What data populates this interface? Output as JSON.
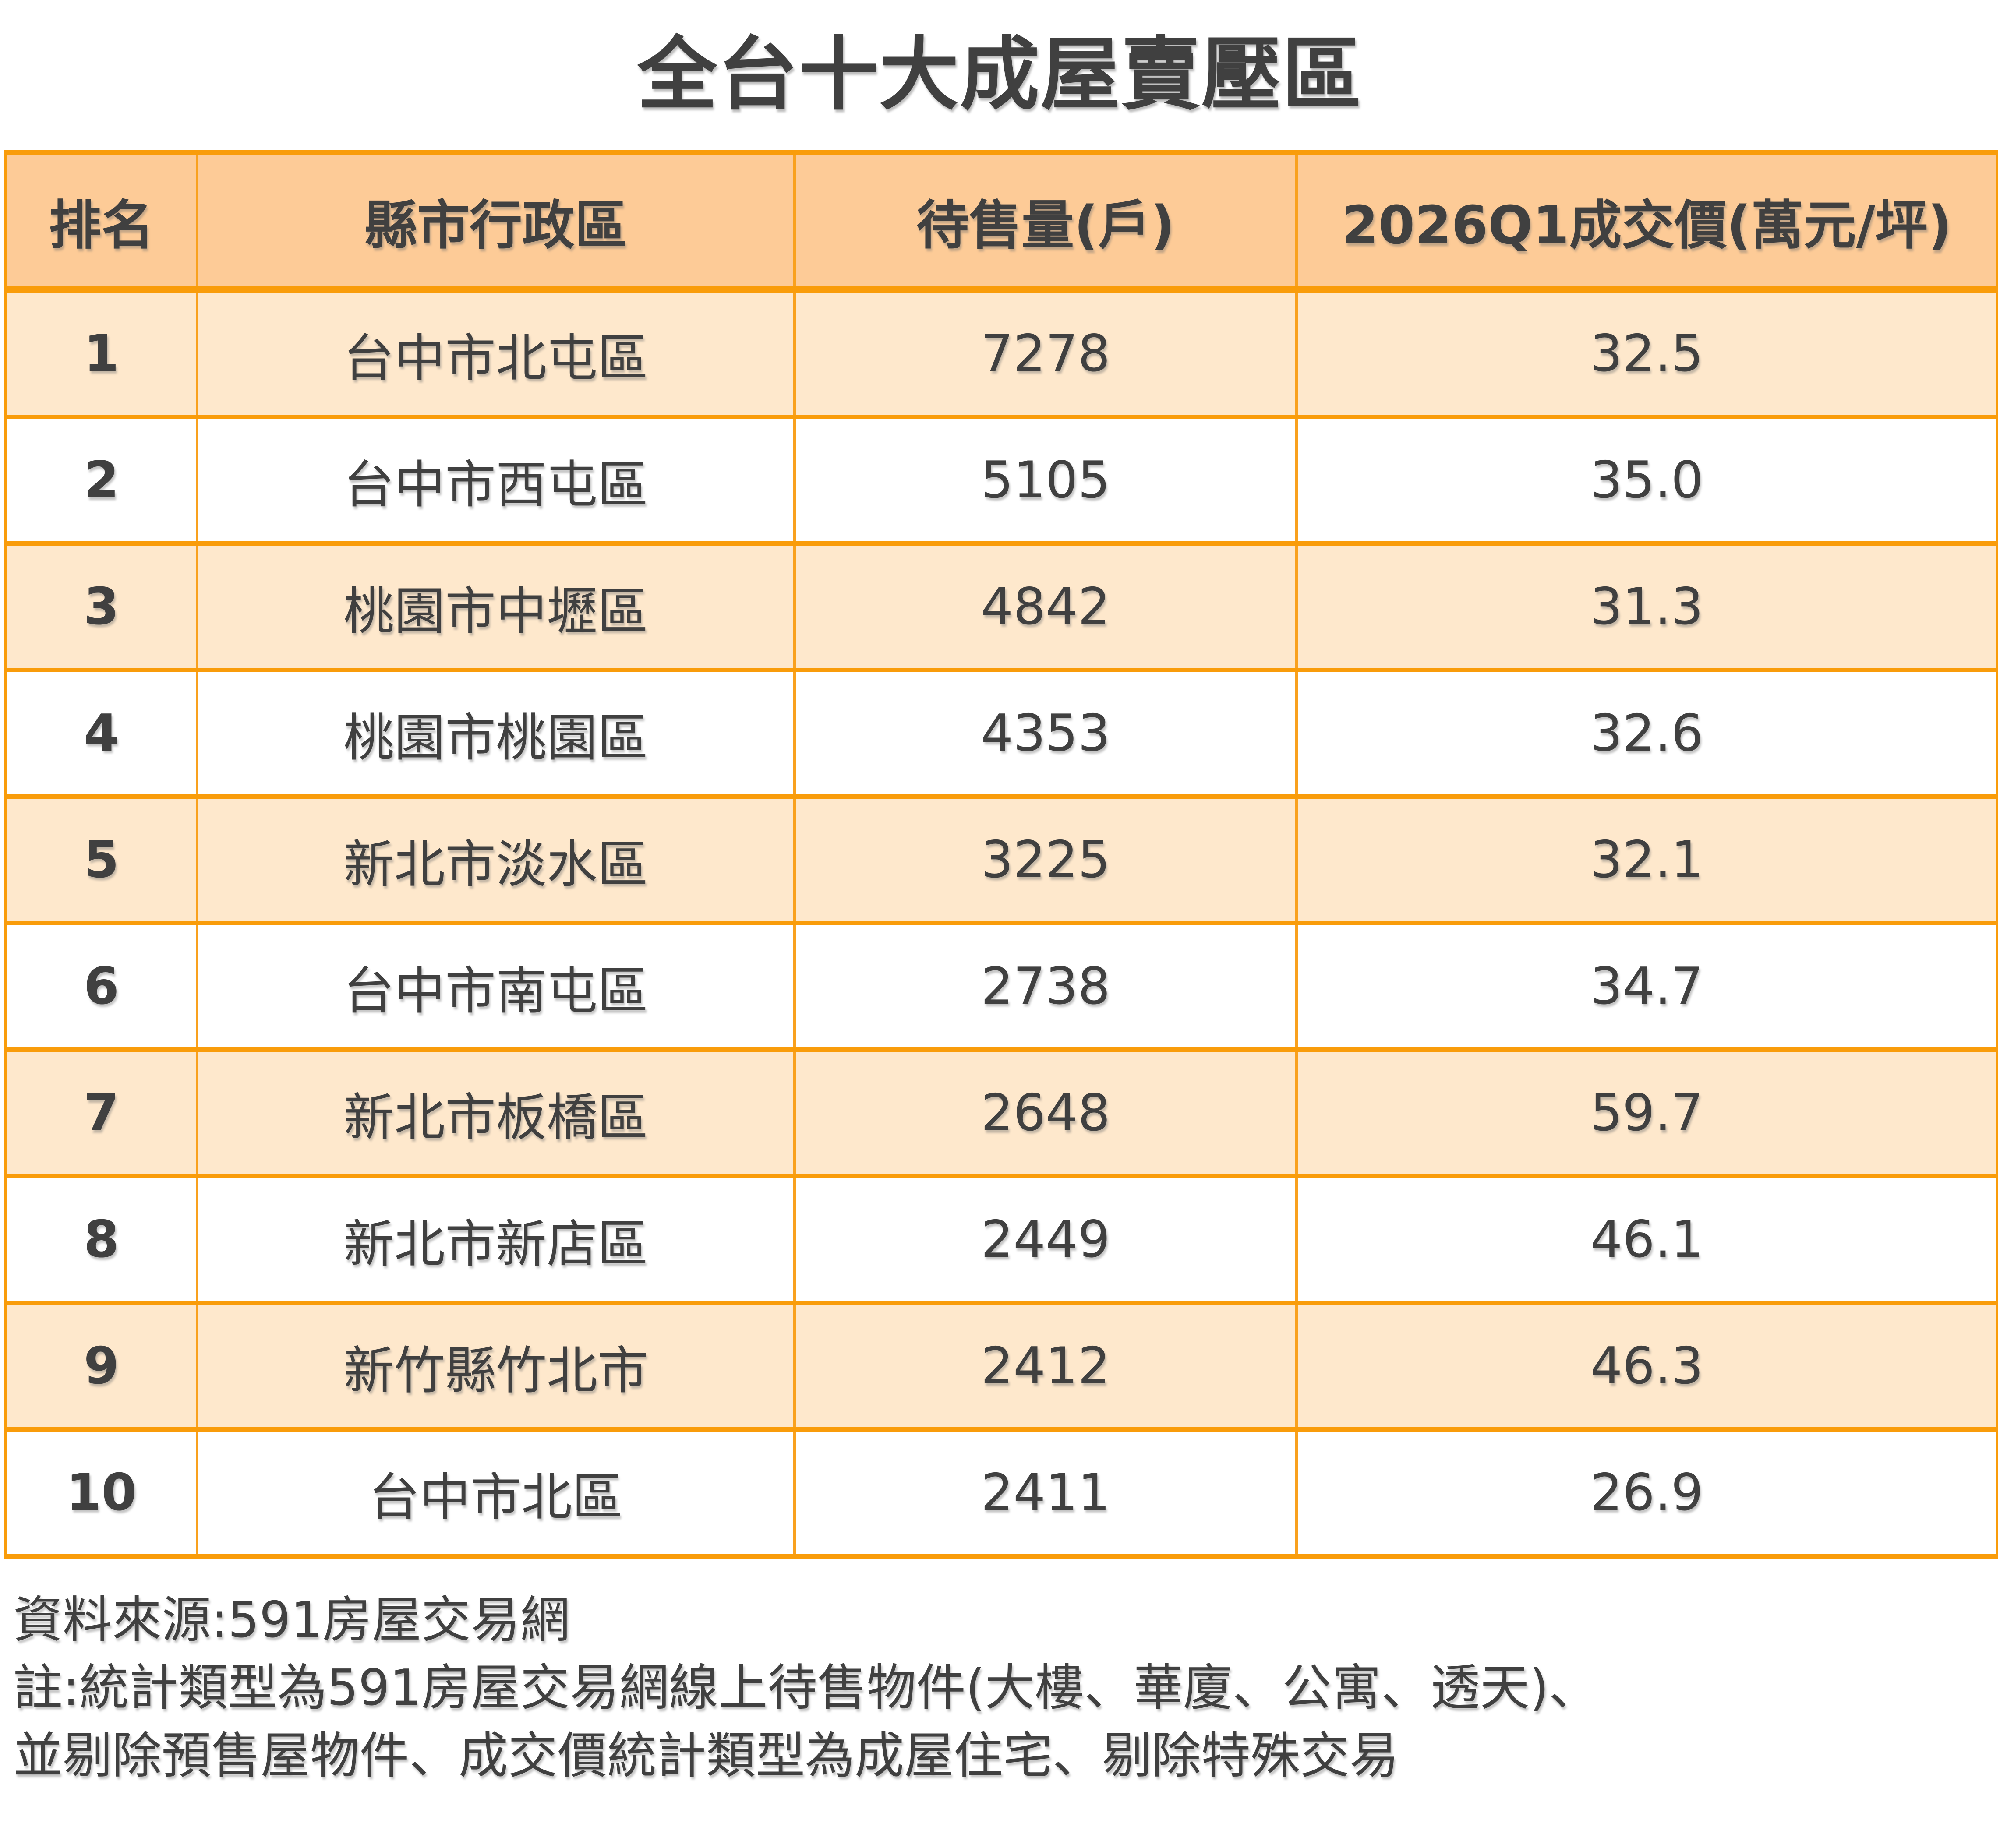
{
  "title": "全台十大成屋賣壓區",
  "table": {
    "columns": [
      "排名",
      "縣市行政區",
      "待售量(戶)",
      "2026Q1成交價(萬元/坪)"
    ],
    "rows": [
      {
        "rank": "1",
        "district": "台中市北屯區",
        "supply": "7278",
        "price": "32.5"
      },
      {
        "rank": "2",
        "district": "台中市西屯區",
        "supply": "5105",
        "price": "35.0"
      },
      {
        "rank": "3",
        "district": "桃園市中壢區",
        "supply": "4842",
        "price": "31.3"
      },
      {
        "rank": "4",
        "district": "桃園市桃園區",
        "supply": "4353",
        "price": "32.6"
      },
      {
        "rank": "5",
        "district": "新北市淡水區",
        "supply": "3225",
        "price": "32.1"
      },
      {
        "rank": "6",
        "district": "台中市南屯區",
        "supply": "2738",
        "price": "34.7"
      },
      {
        "rank": "7",
        "district": "新北市板橋區",
        "supply": "2648",
        "price": "59.7"
      },
      {
        "rank": "8",
        "district": "新北市新店區",
        "supply": "2449",
        "price": "46.1"
      },
      {
        "rank": "9",
        "district": "新竹縣竹北市",
        "supply": "2412",
        "price": "46.3"
      },
      {
        "rank": "10",
        "district": "台中市北區",
        "supply": "2411",
        "price": "26.9"
      }
    ]
  },
  "footer": {
    "source": "資料來源:591房屋交易網",
    "note_line1": "註:統計類型為591房屋交易網線上待售物件(大樓、華廈、公寓、透天)、",
    "note_line2": "並剔除預售屋物件、成交價統計類型為成屋住宅、剔除特殊交易"
  },
  "colors": {
    "border_thick": "#F99C0A",
    "border_thin": "#F9A11E",
    "header_bg": "#FDCB97",
    "row_odd_bg": "#FEE8CC",
    "row_even_bg": "#FFFFFF",
    "text": "#404040"
  },
  "chart_data": {
    "type": "table",
    "title": "全台十大成屋賣壓區",
    "columns": [
      "排名",
      "縣市行政區",
      "待售量(戶)",
      "2026Q1成交價(萬元/坪)"
    ],
    "rows": [
      [
        1,
        "台中市北屯區",
        7278,
        32.5
      ],
      [
        2,
        "台中市西屯區",
        5105,
        35.0
      ],
      [
        3,
        "桃園市中壢區",
        4842,
        31.3
      ],
      [
        4,
        "桃園市桃園區",
        4353,
        32.6
      ],
      [
        5,
        "新北市淡水區",
        3225,
        32.1
      ],
      [
        6,
        "台中市南屯區",
        2738,
        34.7
      ],
      [
        7,
        "新北市板橋區",
        2648,
        59.7
      ],
      [
        8,
        "新北市新店區",
        2449,
        46.1
      ],
      [
        9,
        "新竹縣竹北市",
        2412,
        46.3
      ],
      [
        10,
        "台中市北區",
        2411,
        26.9
      ]
    ],
    "source_note": "資料來源:591房屋交易網"
  }
}
